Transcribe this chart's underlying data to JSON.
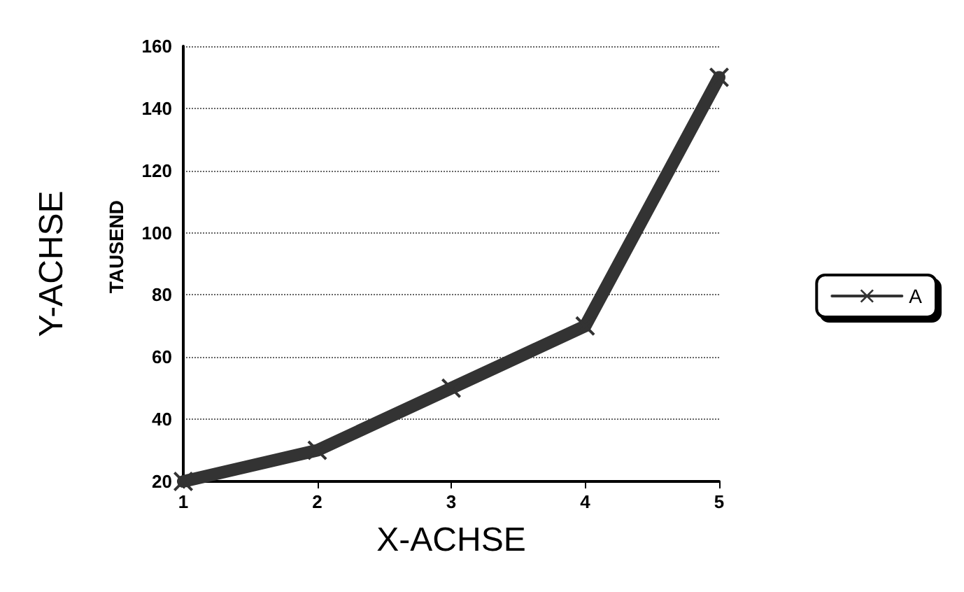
{
  "chart_data": {
    "type": "line",
    "xlabel": "X-ACHSE",
    "ylabel": "Y-ACHSE",
    "annotations": [
      "TAUSEND"
    ],
    "x": [
      1,
      2,
      3,
      4,
      5
    ],
    "series": [
      {
        "name": "A",
        "color": "#333333",
        "values": [
          20,
          30,
          50,
          70,
          150
        ]
      }
    ],
    "xlim": [
      1,
      5
    ],
    "xticks": [
      1,
      2,
      3,
      4,
      5
    ],
    "ylim": [
      20,
      160
    ],
    "yticks": [
      20,
      40,
      60,
      80,
      100,
      120,
      140,
      160
    ],
    "grid": "y",
    "legend": "right",
    "marker": "cross",
    "line_style": "solid"
  }
}
